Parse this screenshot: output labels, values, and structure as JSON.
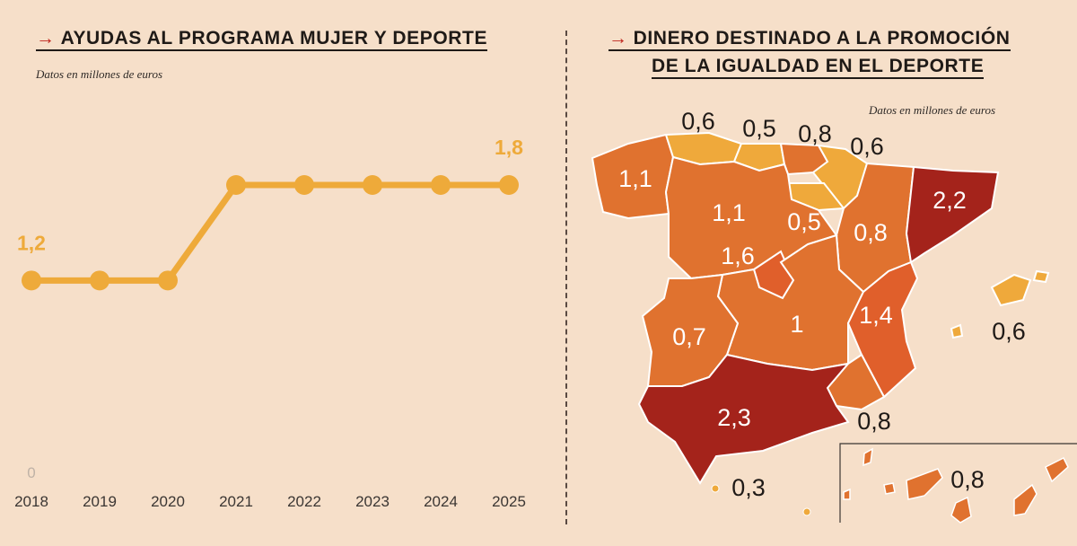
{
  "left": {
    "title": "AYUDAS AL PROGRAMA MUJER Y DEPORTE",
    "subtitle": "Datos en millones de euros",
    "arrow": "→"
  },
  "right": {
    "title_line1": "DINERO DESTINADO A LA PROMOCIÓN",
    "title_line2": "DE LA IGUALDAD EN EL DEPORTE",
    "subtitle": "Datos en millones de euros",
    "arrow": "→"
  },
  "colors": {
    "background": "#f6dfc9",
    "line": "#eeaa3a",
    "low": "#efa93b",
    "mid": "#e0722f",
    "midHigh": "#e05f2b",
    "high": "#a4231b",
    "text": "#1f1a17"
  },
  "chart_data": [
    {
      "type": "line",
      "title": "AYUDAS AL PROGRAMA MUJER Y DEPORTE",
      "subtitle": "Datos en millones de euros",
      "x": [
        "2018",
        "2019",
        "2020",
        "2021",
        "2022",
        "2023",
        "2024",
        "2025"
      ],
      "values": [
        1.2,
        1.2,
        1.2,
        1.8,
        1.8,
        1.8,
        1.8,
        1.8
      ],
      "value_labels": [
        "1,2",
        "",
        "",
        "",
        "",
        "",
        "",
        "1,8"
      ],
      "ylim": [
        0,
        1.8
      ],
      "y_ticks": [
        {
          "value": 0,
          "label": "0"
        }
      ],
      "xlabel": "",
      "ylabel": "",
      "grid": false
    },
    {
      "type": "choropleth",
      "title": "DINERO DESTINADO A LA PROMOCIÓN DE LA IGUALDAD EN EL DEPORTE",
      "subtitle": "Datos en millones de euros",
      "regions": [
        {
          "name": "Galicia",
          "value": 1.1,
          "label": "1,1"
        },
        {
          "name": "Asturias",
          "value": 0.6,
          "label": "0,6"
        },
        {
          "name": "Cantabria",
          "value": 0.5,
          "label": "0,5"
        },
        {
          "name": "País Vasco",
          "value": 0.8,
          "label": "0,8"
        },
        {
          "name": "Navarra",
          "value": 0.6,
          "label": "0,6"
        },
        {
          "name": "La Rioja",
          "value": 0.5,
          "label": "0,5"
        },
        {
          "name": "Aragón",
          "value": 0.8,
          "label": "0,8"
        },
        {
          "name": "Cataluña",
          "value": 2.2,
          "label": "2,2"
        },
        {
          "name": "Castilla y León",
          "value": 1.1,
          "label": "1,1"
        },
        {
          "name": "Madrid",
          "value": 1.6,
          "label": "1,6"
        },
        {
          "name": "Castilla-La Mancha",
          "value": 1,
          "label": "1"
        },
        {
          "name": "Comunidad Valenciana",
          "value": 1.4,
          "label": "1,4"
        },
        {
          "name": "Islas Baleares",
          "value": 0.6,
          "label": "0,6"
        },
        {
          "name": "Extremadura",
          "value": 0.7,
          "label": "0,7"
        },
        {
          "name": "Murcia",
          "value": 0.8,
          "label": "0,8"
        },
        {
          "name": "Andalucía",
          "value": 2.3,
          "label": "2,3"
        },
        {
          "name": "Ceuta y Melilla",
          "value": 0.3,
          "label": "0,3"
        },
        {
          "name": "Canarias",
          "value": 0.8,
          "label": "0,8"
        }
      ]
    }
  ]
}
